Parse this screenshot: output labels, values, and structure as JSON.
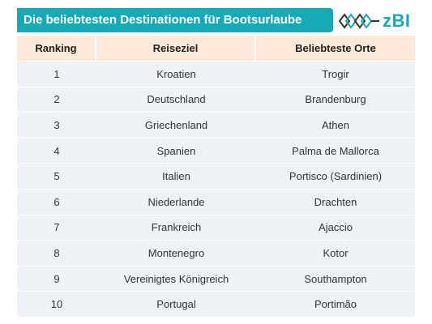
{
  "title": "Die beliebtesten Destinationen für Bootsurlaube",
  "logo": {
    "text": "zBI"
  },
  "table": {
    "headers": [
      "Ranking",
      "Reiseziel",
      "Beliebteste Orte"
    ],
    "rows": [
      [
        "1",
        "Kroatien",
        "Trogir"
      ],
      [
        "2",
        "Deutschland",
        "Brandenburg"
      ],
      [
        "3",
        "Griechenland",
        "Athen"
      ],
      [
        "4",
        "Spanien",
        "Palma de Mallorca"
      ],
      [
        "5",
        "Italien",
        "Portisco (Sardinien)"
      ],
      [
        "6",
        "Niederlande",
        "Drachten"
      ],
      [
        "7",
        "Frankreich",
        "Ajaccio"
      ],
      [
        "8",
        "Montenegro",
        "Kotor"
      ],
      [
        "9",
        "Vereinigtes Königreich",
        "Southampton"
      ],
      [
        "10",
        "Portugal",
        "Portimão"
      ]
    ]
  },
  "colors": {
    "accent": "#16aab6",
    "header_bg": "#fce9d8",
    "row_bg": "#eef2f6"
  }
}
